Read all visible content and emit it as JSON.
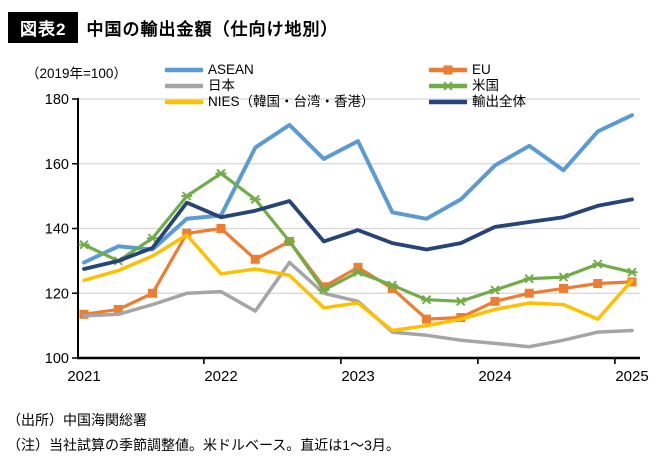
{
  "header": {
    "badge": "図表2",
    "title": "中国の輸出金額（仕向け地別）"
  },
  "axis_note": "（2019年=100）",
  "footer": {
    "source": "（出所）中国海関総署",
    "note": "（注）当社試算の季節調整値。米ドルベース。直近は1～3月。"
  },
  "colors": {
    "grid": "#d6d6d6",
    "axis": "#000000",
    "background": "#ffffff",
    "badge_bg": "#000000",
    "badge_text": "#ffffff"
  },
  "chart_data": {
    "type": "line",
    "title": "中国の輸出金額（仕向け地別）",
    "unit_note": "（2019年=100）",
    "ylim": [
      100,
      180
    ],
    "ytick_step": 20,
    "ytick_labels": [
      "100",
      "120",
      "140",
      "160",
      "180"
    ],
    "grid": true,
    "legend_position": "top",
    "x_labels": [
      "2021",
      "2022",
      "2023",
      "2024",
      "2025"
    ],
    "categories": [
      "2021Q1",
      "2021Q2",
      "2021Q3",
      "2021Q4",
      "2022Q1",
      "2022Q2",
      "2022Q3",
      "2022Q4",
      "2023Q1",
      "2023Q2",
      "2023Q3",
      "2023Q4",
      "2024Q1",
      "2024Q2",
      "2024Q3",
      "2024Q4",
      "2025Q1"
    ],
    "series": [
      {
        "label": "ASEAN",
        "color": "#5B9BD5",
        "marker": "none",
        "width": 4,
        "values": [
          129.5,
          134.5,
          133.5,
          143,
          144,
          165,
          172,
          161.5,
          167,
          145,
          143,
          149,
          159.5,
          165.5,
          158,
          170,
          175
        ]
      },
      {
        "label": "EU",
        "color": "#ED7D31",
        "marker": "square",
        "width": 3.2,
        "values": [
          113.5,
          115,
          120,
          138.5,
          140,
          130.5,
          136,
          122,
          128,
          121.5,
          112,
          112.5,
          117.5,
          120,
          121.5,
          123,
          123.5
        ]
      },
      {
        "label": "日本",
        "color": "#A5A5A5",
        "marker": "none",
        "width": 3.5,
        "values": [
          113,
          113.5,
          116.5,
          120,
          120.5,
          114.5,
          129.5,
          120,
          117.5,
          108,
          107,
          105.5,
          104.5,
          103.5,
          105.5,
          108,
          108.5
        ]
      },
      {
        "label": "米国",
        "color": "#70AD47",
        "marker": "star",
        "width": 3.2,
        "values": [
          135,
          130,
          137,
          150,
          157,
          149,
          136,
          121,
          126.5,
          122.5,
          118,
          117.5,
          121,
          124.5,
          125,
          129,
          126.5
        ]
      },
      {
        "label": "NIES（韓国・台湾・香港）",
        "color": "#FFC000",
        "marker": "none",
        "width": 3.5,
        "values": [
          124,
          127,
          131.5,
          138,
          126,
          127.5,
          125.5,
          115.5,
          117,
          108.5,
          110,
          112,
          115,
          117,
          116.5,
          112,
          124
        ]
      },
      {
        "label": "輸出全体",
        "color": "#264478",
        "marker": "none",
        "width": 3.8,
        "values": [
          127.5,
          130,
          134,
          148,
          143.5,
          145.5,
          148.5,
          136,
          139.5,
          135.5,
          133.5,
          135.5,
          140.5,
          142,
          143.5,
          147,
          149
        ]
      }
    ]
  }
}
